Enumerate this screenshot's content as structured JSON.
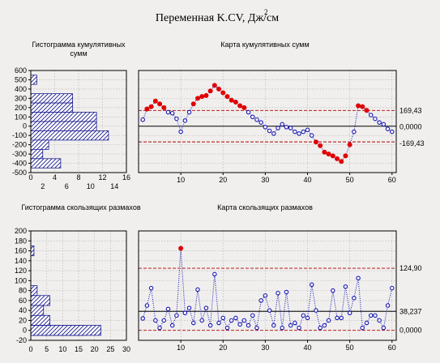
{
  "title": "Переменная K.CV, Дж/см",
  "title_sup": "2",
  "colors": {
    "marker": "#1515b0",
    "out": "#e00000",
    "limit": "#b00000",
    "hatch": "#1a1a8e",
    "bg": "#f0efee"
  },
  "chart_data": [
    {
      "id": "cusum_hist",
      "type": "bar",
      "orientation": "horizontal",
      "title": "Гистограмма кумулятивных сумм",
      "ylim": [
        -500,
        600
      ],
      "yticks": [
        600,
        500,
        400,
        300,
        200,
        100,
        0,
        -100,
        -200,
        -300,
        -400,
        -500
      ],
      "xlim": [
        0,
        16
      ],
      "xticks_top": [
        0,
        4,
        8,
        12,
        16
      ],
      "xticks_bottom": [
        2,
        6,
        10,
        14
      ],
      "bins": [
        {
          "from": 450,
          "to": 550,
          "count": 1
        },
        {
          "from": 250,
          "to": 350,
          "count": 7
        },
        {
          "from": 150,
          "to": 250,
          "count": 7
        },
        {
          "from": 50,
          "to": 150,
          "count": 11
        },
        {
          "from": -50,
          "to": 50,
          "count": 11
        },
        {
          "from": -150,
          "to": -50,
          "count": 13
        },
        {
          "from": -250,
          "to": -150,
          "count": 3
        },
        {
          "from": -350,
          "to": -250,
          "count": 2
        },
        {
          "from": -450,
          "to": -350,
          "count": 5
        }
      ],
      "grid": true
    },
    {
      "id": "cusum_chart",
      "type": "line",
      "title": "Карта кумулятивных сумм",
      "xlim": [
        0,
        61
      ],
      "xticks": [
        10,
        20,
        30,
        40,
        50,
        60
      ],
      "ylim": [
        -500,
        600
      ],
      "center": 0,
      "ucl": 169.43,
      "lcl": -169.43,
      "labels": [
        "169,43",
        "0,0000",
        "-169,43"
      ],
      "y": [
        70,
        185,
        210,
        270,
        240,
        200,
        150,
        140,
        80,
        -60,
        60,
        150,
        240,
        300,
        320,
        330,
        380,
        440,
        400,
        360,
        320,
        280,
        260,
        220,
        200,
        150,
        100,
        70,
        40,
        -10,
        -50,
        -80,
        -20,
        20,
        -10,
        -20,
        -60,
        -80,
        -60,
        -40,
        -100,
        -170,
        -210,
        -280,
        -300,
        -320,
        -350,
        -380,
        -320,
        -200,
        -60,
        220,
        210,
        170,
        120,
        80,
        40,
        20,
        -30,
        -60
      ],
      "grid": true
    },
    {
      "id": "mr_hist",
      "type": "bar",
      "orientation": "horizontal",
      "title": "Гистограмма скользящих размахов",
      "ylim": [
        -20,
        200
      ],
      "yticks": [
        200,
        180,
        160,
        140,
        120,
        100,
        80,
        60,
        40,
        20,
        0,
        -20
      ],
      "xlim": [
        0,
        30
      ],
      "xticks": [
        0,
        5,
        10,
        15,
        20,
        25,
        30
      ],
      "bins": [
        {
          "from": 150,
          "to": 170,
          "count": 1
        },
        {
          "from": 70,
          "to": 90,
          "count": 2
        },
        {
          "from": 50,
          "to": 70,
          "count": 6
        },
        {
          "from": 30,
          "to": 50,
          "count": 4
        },
        {
          "from": 10,
          "to": 30,
          "count": 6
        },
        {
          "from": -10,
          "to": 10,
          "count": 17
        },
        {
          "from": -10,
          "to": 10,
          "count": 22
        }
      ],
      "grid": true
    },
    {
      "id": "mr_chart",
      "type": "line",
      "title": "Карта скользящих размахов",
      "xlim": [
        0,
        61
      ],
      "xticks": [
        10,
        20,
        30,
        40,
        50,
        60
      ],
      "ylim": [
        -20,
        200
      ],
      "center": 38.237,
      "ucl": 124.9,
      "lcl": 0,
      "labels": [
        "124,90",
        "38,237",
        "0,0000"
      ],
      "y": [
        24,
        50,
        85,
        20,
        5,
        20,
        43,
        10,
        30,
        165,
        35,
        45,
        15,
        82,
        20,
        45,
        10,
        113,
        15,
        25,
        5,
        20,
        25,
        12,
        20,
        10,
        30,
        5,
        60,
        70,
        40,
        10,
        75,
        5,
        77,
        10,
        15,
        5,
        30,
        25,
        92,
        40,
        5,
        10,
        20,
        80,
        25,
        25,
        88,
        35,
        65,
        105,
        5,
        15,
        30,
        30,
        20,
        5,
        50,
        85
      ],
      "grid": true
    }
  ]
}
